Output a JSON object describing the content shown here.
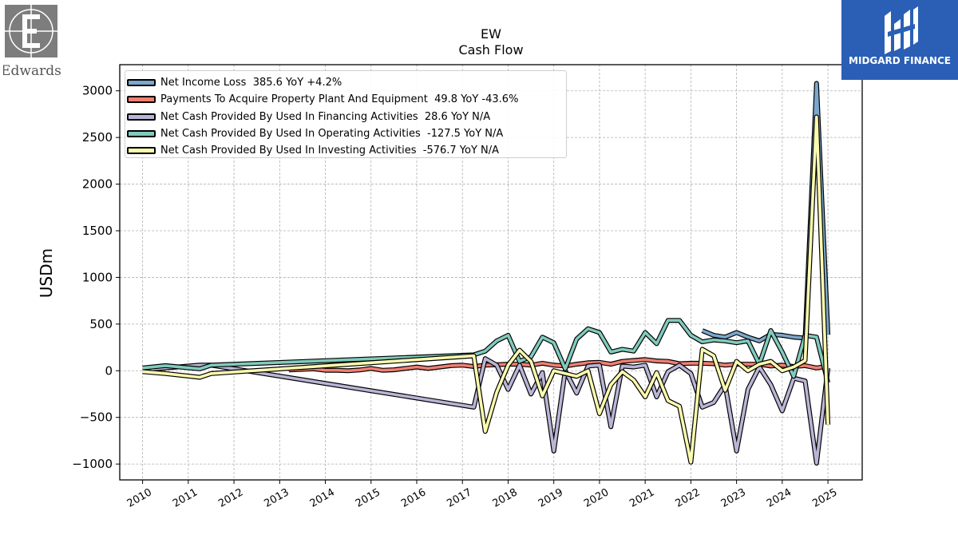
{
  "header": {
    "ticker": "EW",
    "subtitle": "Cash Flow"
  },
  "logos": {
    "left_text": "Edwards",
    "right_text": "MIDGARD FINANCE"
  },
  "colors": {
    "net_income": "#7ba7cc",
    "capex": "#f07f72",
    "financing": "#bab5d6",
    "operating": "#80cbbd",
    "investing": "#fcfcb0",
    "brand_blue": "#2a5fb5"
  },
  "chart_data": {
    "type": "line",
    "ylabel": "USDm",
    "xlabel": "",
    "ylim": [
      -1170,
      3280
    ],
    "xlim": [
      2009.5,
      2025.75
    ],
    "yticks": [
      -1000,
      -500,
      0,
      500,
      1000,
      1500,
      2000,
      2500,
      3000
    ],
    "ytick_labels": [
      "−1000",
      "−500",
      "0",
      "500",
      "1000",
      "1500",
      "2000",
      "2500",
      "3000"
    ],
    "xticks": [
      2010,
      2011,
      2012,
      2013,
      2014,
      2015,
      2016,
      2017,
      2018,
      2019,
      2020,
      2021,
      2022,
      2023,
      2024,
      2025
    ],
    "xtick_labels": [
      "2010",
      "2011",
      "2012",
      "2013",
      "2014",
      "2015",
      "2016",
      "2017",
      "2018",
      "2019",
      "2020",
      "2021",
      "2022",
      "2023",
      "2024",
      "2025"
    ],
    "grid": true,
    "legend_position": "top-left",
    "series": [
      {
        "name": "Net Income Loss",
        "legend": "Net Income Loss  385.6 YoY +4.2%",
        "color_key": "net_income",
        "points": [
          [
            2022.25,
            430
          ],
          [
            2022.5,
            380
          ],
          [
            2022.75,
            360
          ],
          [
            2023.0,
            410
          ],
          [
            2023.25,
            360
          ],
          [
            2023.5,
            320
          ],
          [
            2023.75,
            390
          ],
          [
            2024.0,
            380
          ],
          [
            2024.25,
            360
          ],
          [
            2024.5,
            350
          ],
          [
            2024.75,
            3080
          ],
          [
            2025.0,
            385.6
          ]
        ]
      },
      {
        "name": "Payments To Acquire Property Plant And Equipment",
        "legend": "Payments To Acquire Property Plant And Equipment  49.8 YoY -43.6%",
        "color_key": "capex",
        "points": [
          [
            2013.2,
            8
          ],
          [
            2013.5,
            15
          ],
          [
            2013.75,
            20
          ],
          [
            2014.0,
            5
          ],
          [
            2014.25,
            5
          ],
          [
            2014.5,
            0
          ],
          [
            2014.75,
            8
          ],
          [
            2015.0,
            25
          ],
          [
            2015.25,
            5
          ],
          [
            2015.5,
            10
          ],
          [
            2015.75,
            25
          ],
          [
            2016.0,
            40
          ],
          [
            2016.25,
            25
          ],
          [
            2016.5,
            40
          ],
          [
            2016.75,
            55
          ],
          [
            2017.0,
            60
          ],
          [
            2017.25,
            45
          ],
          [
            2017.5,
            60
          ],
          [
            2017.75,
            65
          ],
          [
            2018.0,
            70
          ],
          [
            2018.25,
            70
          ],
          [
            2018.5,
            60
          ],
          [
            2018.75,
            80
          ],
          [
            2019.0,
            60
          ],
          [
            2019.25,
            50
          ],
          [
            2019.5,
            70
          ],
          [
            2019.75,
            85
          ],
          [
            2020.0,
            90
          ],
          [
            2020.25,
            70
          ],
          [
            2020.5,
            100
          ],
          [
            2020.75,
            110
          ],
          [
            2021.0,
            120
          ],
          [
            2021.25,
            105
          ],
          [
            2021.5,
            100
          ],
          [
            2021.75,
            75
          ],
          [
            2022.0,
            80
          ],
          [
            2022.25,
            80
          ],
          [
            2022.5,
            75
          ],
          [
            2022.75,
            60
          ],
          [
            2023.0,
            70
          ],
          [
            2023.25,
            70
          ],
          [
            2023.5,
            70
          ],
          [
            2023.75,
            50
          ],
          [
            2024.0,
            60
          ],
          [
            2024.25,
            45
          ],
          [
            2024.5,
            55
          ],
          [
            2024.75,
            30
          ],
          [
            2025.0,
            49.8
          ]
        ]
      },
      {
        "name": "Net Cash Provided By Used In Financing Activities",
        "legend": "Net Cash Provided By Used In Financing Activities  28.6 YoY N/A",
        "color_key": "financing",
        "points": [
          [
            2010.25,
            20
          ],
          [
            2010.75,
            40
          ],
          [
            2011.25,
            60
          ],
          [
            2011.5,
            60
          ],
          [
            2017.25,
            -390
          ],
          [
            2017.5,
            130
          ],
          [
            2017.75,
            60
          ],
          [
            2018.0,
            -200
          ],
          [
            2018.25,
            60
          ],
          [
            2018.5,
            -250
          ],
          [
            2018.75,
            -20
          ],
          [
            2019.0,
            -860
          ],
          [
            2019.25,
            0
          ],
          [
            2019.5,
            -240
          ],
          [
            2019.75,
            50
          ],
          [
            2020.0,
            60
          ],
          [
            2020.25,
            -600
          ],
          [
            2020.5,
            50
          ],
          [
            2020.75,
            40
          ],
          [
            2021.0,
            60
          ],
          [
            2021.25,
            -280
          ],
          [
            2021.5,
            -10
          ],
          [
            2021.75,
            60
          ],
          [
            2022.0,
            -30
          ],
          [
            2022.25,
            -390
          ],
          [
            2022.5,
            -340
          ],
          [
            2022.75,
            -150
          ],
          [
            2023.0,
            -860
          ],
          [
            2023.25,
            -200
          ],
          [
            2023.5,
            40
          ],
          [
            2023.75,
            -150
          ],
          [
            2024.0,
            -430
          ],
          [
            2024.25,
            -80
          ],
          [
            2024.5,
            -110
          ],
          [
            2024.75,
            -990
          ],
          [
            2025.0,
            28.6
          ]
        ]
      },
      {
        "name": "Net Cash Provided By Used In Operating Activities",
        "legend": "Net Cash Provided By Used In Operating Activities  -127.5 YoY N/A",
        "color_key": "operating",
        "points": [
          [
            2010.0,
            30
          ],
          [
            2010.5,
            55
          ],
          [
            2011.25,
            20
          ],
          [
            2011.5,
            60
          ],
          [
            2017.25,
            170
          ],
          [
            2017.5,
            210
          ],
          [
            2017.75,
            320
          ],
          [
            2018.0,
            380
          ],
          [
            2018.25,
            100
          ],
          [
            2018.5,
            150
          ],
          [
            2018.75,
            360
          ],
          [
            2019.0,
            300
          ],
          [
            2019.25,
            20
          ],
          [
            2019.5,
            340
          ],
          [
            2019.75,
            450
          ],
          [
            2020.0,
            410
          ],
          [
            2020.25,
            200
          ],
          [
            2020.5,
            230
          ],
          [
            2020.75,
            210
          ],
          [
            2021.0,
            410
          ],
          [
            2021.25,
            290
          ],
          [
            2021.5,
            540
          ],
          [
            2021.75,
            540
          ],
          [
            2022.0,
            380
          ],
          [
            2022.25,
            310
          ],
          [
            2022.5,
            330
          ],
          [
            2022.75,
            320
          ],
          [
            2023.0,
            300
          ],
          [
            2023.25,
            320
          ],
          [
            2023.5,
            70
          ],
          [
            2023.75,
            430
          ],
          [
            2024.0,
            200
          ],
          [
            2024.25,
            -60
          ],
          [
            2024.5,
            380
          ],
          [
            2024.75,
            360
          ],
          [
            2025.0,
            -127.5
          ]
        ]
      },
      {
        "name": "Net Cash Provided By Used In Investing Activities",
        "legend": "Net Cash Provided By Used In Investing Activities  -576.7 YoY N/A",
        "color_key": "investing",
        "points": [
          [
            2010.0,
            -10
          ],
          [
            2010.5,
            -30
          ],
          [
            2011.25,
            -70
          ],
          [
            2011.5,
            -30
          ],
          [
            2017.25,
            160
          ],
          [
            2017.5,
            -650
          ],
          [
            2017.75,
            -230
          ],
          [
            2018.0,
            60
          ],
          [
            2018.25,
            220
          ],
          [
            2018.5,
            100
          ],
          [
            2018.75,
            -270
          ],
          [
            2019.0,
            0
          ],
          [
            2019.5,
            -60
          ],
          [
            2019.75,
            0
          ],
          [
            2020.0,
            -460
          ],
          [
            2020.25,
            -150
          ],
          [
            2020.5,
            -10
          ],
          [
            2020.75,
            -100
          ],
          [
            2021.0,
            -280
          ],
          [
            2021.25,
            -20
          ],
          [
            2021.5,
            -320
          ],
          [
            2021.75,
            -380
          ],
          [
            2022.0,
            -980
          ],
          [
            2022.25,
            230
          ],
          [
            2022.5,
            160
          ],
          [
            2022.75,
            -210
          ],
          [
            2023.0,
            100
          ],
          [
            2023.25,
            0
          ],
          [
            2023.5,
            70
          ],
          [
            2023.75,
            100
          ],
          [
            2024.0,
            0
          ],
          [
            2024.25,
            40
          ],
          [
            2024.5,
            110
          ],
          [
            2024.75,
            2720
          ],
          [
            2025.0,
            -576.7
          ]
        ]
      }
    ]
  }
}
